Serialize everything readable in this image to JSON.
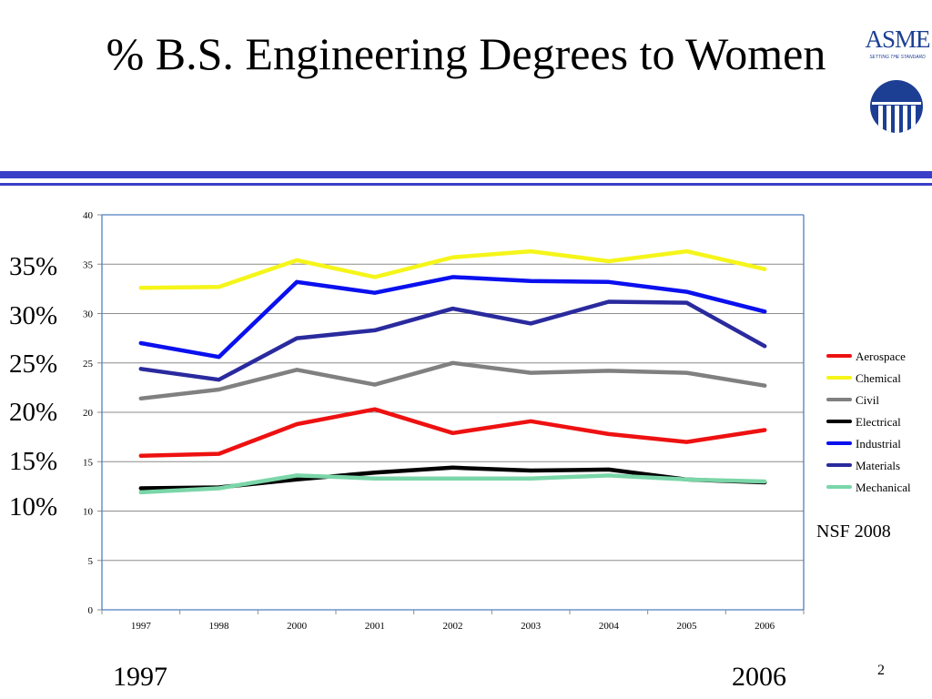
{
  "slide": {
    "title": "% B.S. Engineering Degrees to Women",
    "logo_text": "ASME",
    "logo_tagline": "SETTING THE STANDARD",
    "percent_labels": [
      "35%",
      "30%",
      "25%",
      "20%",
      "15%",
      "10%"
    ],
    "year_start": "1997",
    "year_end": "2006",
    "source": "NSF 2008",
    "page_number": "2",
    "colors": {
      "rule": "#3a3fc8",
      "logo": "#1c3f94"
    }
  },
  "chart_data": {
    "type": "line",
    "title": "",
    "xlabel": "",
    "ylabel": "",
    "categories": [
      "1997",
      "1998",
      "2000",
      "2001",
      "2002",
      "2003",
      "2004",
      "2005",
      "2006"
    ],
    "ylim": [
      0,
      40
    ],
    "yticks": [
      0,
      5,
      10,
      15,
      20,
      25,
      30,
      35,
      40
    ],
    "grid": true,
    "legend_position": "right",
    "series": [
      {
        "name": "Aerospace",
        "color": "#ee1111",
        "values": [
          15.6,
          15.8,
          18.8,
          20.3,
          17.9,
          19.1,
          17.8,
          17.0,
          18.2
        ]
      },
      {
        "name": "Chemical",
        "color": "#f5f51a",
        "values": [
          32.6,
          32.7,
          35.4,
          33.7,
          35.7,
          36.3,
          35.3,
          36.3,
          34.5
        ]
      },
      {
        "name": "Civil",
        "color": "#808080",
        "values": [
          21.4,
          22.3,
          24.3,
          22.8,
          25.0,
          24.0,
          24.2,
          24.0,
          22.7
        ]
      },
      {
        "name": "Electrical",
        "color": "#000000",
        "values": [
          12.3,
          12.4,
          13.2,
          13.9,
          14.4,
          14.1,
          14.2,
          13.2,
          12.9
        ]
      },
      {
        "name": "Industrial",
        "color": "#0a10ee",
        "values": [
          27.0,
          25.6,
          33.2,
          32.1,
          33.7,
          33.3,
          33.2,
          32.2,
          30.2
        ]
      },
      {
        "name": "Materials",
        "color": "#2a2a9e",
        "values": [
          24.4,
          23.3,
          27.5,
          28.3,
          30.5,
          29.0,
          31.2,
          31.1,
          26.7
        ]
      },
      {
        "name": "Mechanical",
        "color": "#7ad6a8",
        "values": [
          11.9,
          12.3,
          13.6,
          13.3,
          13.3,
          13.3,
          13.6,
          13.2,
          13.0
        ]
      }
    ]
  }
}
